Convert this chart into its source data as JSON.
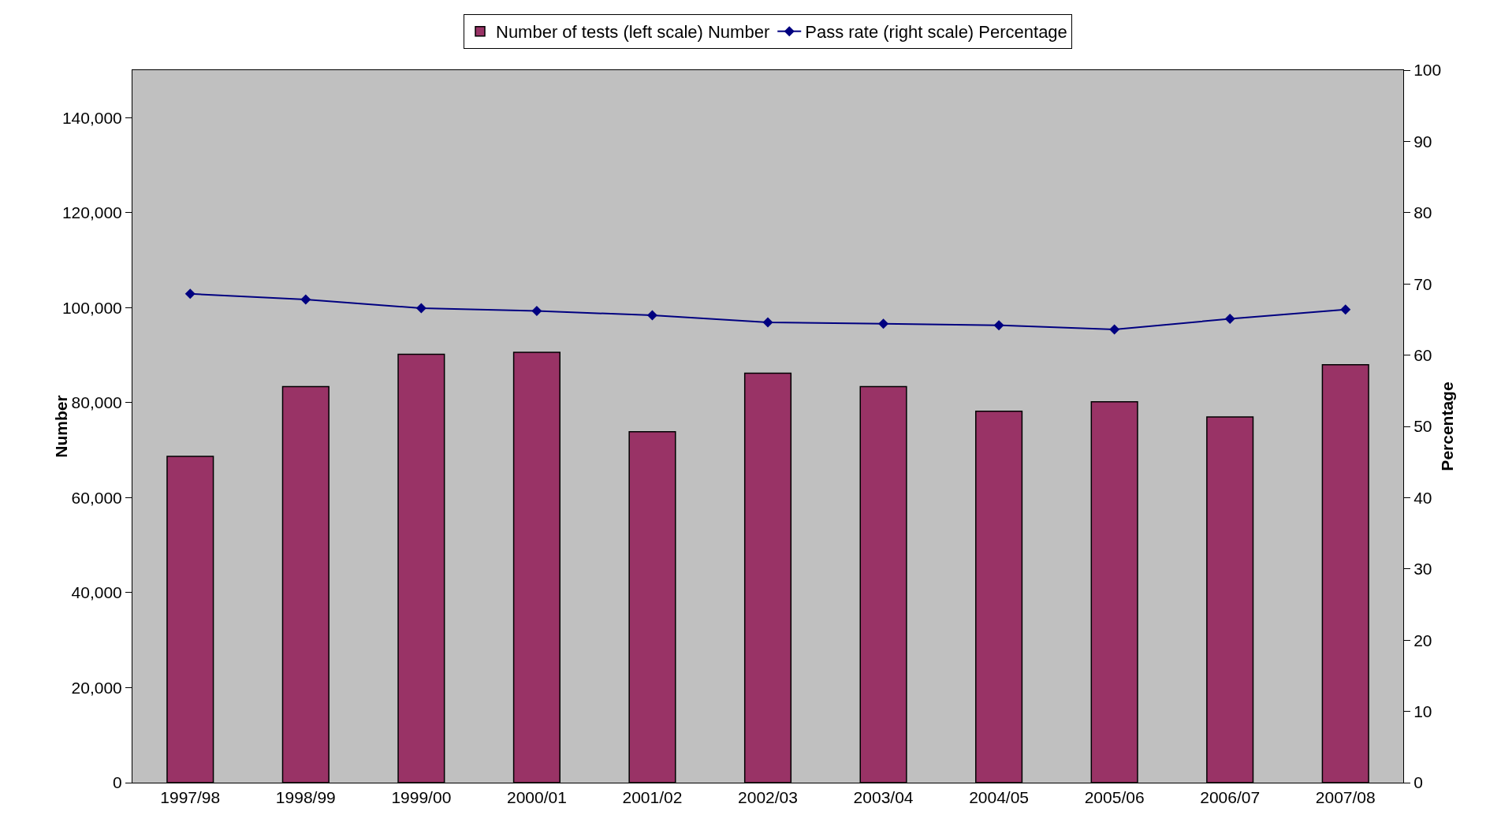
{
  "chart_data": {
    "type": "bar",
    "categories": [
      "1997/98",
      "1998/99",
      "1999/00",
      "2000/01",
      "2001/02",
      "2002/03",
      "2003/04",
      "2004/05",
      "2005/06",
      "2006/07",
      "2007/08"
    ],
    "series": [
      {
        "name": "Number of tests (left scale) Number",
        "color": "#993366",
        "values": [
          68700,
          83400,
          90200,
          90600,
          73900,
          86200,
          83400,
          78200,
          80200,
          77000,
          88000
        ]
      },
      {
        "name": "Pass rate (right scale) Percentage",
        "type": "line",
        "axis": "y2",
        "color": "#000080",
        "marker": "diamond",
        "values": [
          68.6,
          67.8,
          66.6,
          66.2,
          65.6,
          64.6,
          64.4,
          64.2,
          63.6,
          65.1,
          66.4
        ]
      }
    ],
    "ylabel": "Number",
    "y2label": "Percentage",
    "ylim": [
      0,
      150000
    ],
    "yticks": [
      0,
      {
        "value": 20000,
        "label": "20,000"
      },
      {
        "value": 40000,
        "label": "40,000"
      },
      {
        "value": 60000,
        "label": "60,000"
      },
      {
        "value": 80000,
        "label": "80,000"
      },
      {
        "value": 100000,
        "label": "100,000"
      },
      {
        "value": 120000,
        "label": "120,000"
      },
      {
        "value": 140000,
        "label": "140,000"
      }
    ],
    "y2lim": [
      0,
      100
    ],
    "y2ticks": [
      0,
      10,
      20,
      30,
      40,
      50,
      60,
      70,
      80,
      90,
      100
    ],
    "grid": false,
    "legend": "top"
  }
}
